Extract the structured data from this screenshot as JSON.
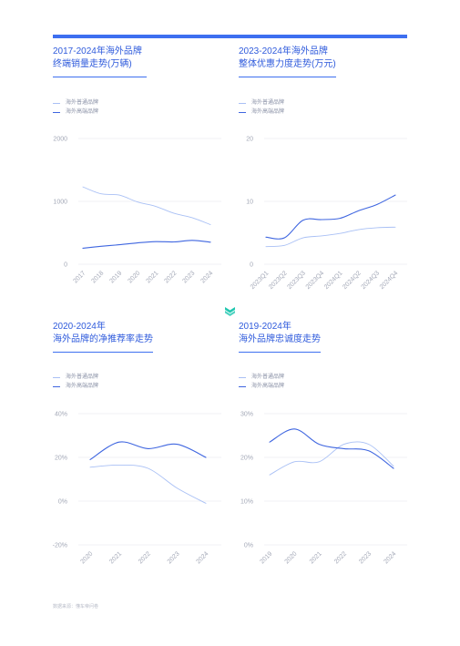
{
  "source": "数据来源：懂车帝问卷",
  "legend": {
    "regular": "海外普通品牌",
    "premium": "海外高端品牌"
  },
  "colors": {
    "regular": "#a9c0f5",
    "premium": "#3f66e0",
    "accent": "#2f5bdc",
    "logo": "#21c7b0"
  },
  "icons": {
    "logo": "stacked-chevron-logo"
  },
  "charts": [
    {
      "title_line1": "2017-2024年海外品牌",
      "title_line2": "终端销量走势(万辆)",
      "chart_data": {
        "type": "line",
        "x": [
          "2017",
          "2018",
          "2019",
          "2020",
          "2021",
          "2022",
          "2023",
          "2024"
        ],
        "y_ticks": [
          "2000",
          "1000",
          "0"
        ],
        "ylim": [
          0,
          2000
        ],
        "grid": true,
        "series": [
          {
            "name": "海外普通品牌",
            "values": [
              1230,
              1120,
              1100,
              990,
              920,
              810,
              740,
              630
            ]
          },
          {
            "name": "海外高端品牌",
            "values": [
              255,
              285,
              310,
              340,
              360,
              355,
              380,
              350
            ]
          }
        ]
      }
    },
    {
      "title_line1": "2023-2024年海外品牌",
      "title_line2": "整体优惠力度走势(万元)",
      "chart_data": {
        "type": "line",
        "x": [
          "2023Q1",
          "2023Q2",
          "2023Q3",
          "2023Q4",
          "2024Q1",
          "2024Q2",
          "2024Q3",
          "2024Q4"
        ],
        "y_ticks": [
          "20",
          "10",
          "0"
        ],
        "ylim": [
          0,
          20
        ],
        "grid": true,
        "series": [
          {
            "name": "海外普通品牌",
            "values": [
              2.8,
              3.0,
              4.2,
              4.5,
              4.9,
              5.5,
              5.8,
              5.9
            ]
          },
          {
            "name": "海外高端品牌",
            "values": [
              4.3,
              4.2,
              7.0,
              7.1,
              7.3,
              8.5,
              9.5,
              11.0
            ]
          }
        ]
      }
    },
    {
      "title_line1": "2020-2024年",
      "title_line2": "海外品牌的净推荐率走势",
      "chart_data": {
        "type": "line",
        "x": [
          "2020",
          "2021",
          "2022",
          "2023",
          "2024"
        ],
        "y_ticks": [
          "40%",
          "20%",
          "0%",
          "-20%"
        ],
        "ylim": [
          -20,
          40
        ],
        "grid": true,
        "series": [
          {
            "name": "海外普通品牌",
            "values": [
              15.5,
              16.5,
              15,
              6,
              -1
            ]
          },
          {
            "name": "海外高端品牌",
            "values": [
              19,
              27,
              24,
              26,
              20
            ]
          }
        ]
      }
    },
    {
      "title_line1": "2019-2024年",
      "title_line2": "海外品牌忠诚度走势",
      "chart_data": {
        "type": "line",
        "x": [
          "2019",
          "2020",
          "2021",
          "2022",
          "2023",
          "2024"
        ],
        "y_ticks": [
          "30%",
          "20%",
          "10%",
          "0%"
        ],
        "ylim": [
          0,
          30
        ],
        "grid": true,
        "series": [
          {
            "name": "海外普通品牌",
            "values": [
              16,
              19,
              19,
              23,
              23,
              18
            ]
          },
          {
            "name": "海外高端品牌",
            "values": [
              23.5,
              26.5,
              23,
              22,
              21.5,
              17.5
            ]
          }
        ]
      }
    }
  ]
}
